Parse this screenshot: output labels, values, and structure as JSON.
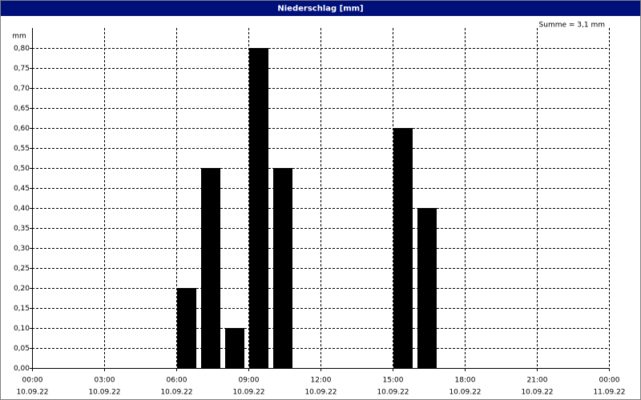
{
  "chart_data": {
    "type": "bar",
    "title": "Niederschlag [mm]",
    "y_label": "mm",
    "annotation": "Summe = 3,1 mm",
    "x": [
      6,
      7,
      8,
      9,
      10,
      15,
      16
    ],
    "values": [
      0.2,
      0.5,
      0.1,
      0.8,
      0.5,
      0.6,
      0.4
    ],
    "color": "#000000",
    "xlim": [
      0,
      24
    ],
    "xticks": [
      {
        "value": 0,
        "label": "00:00"
      },
      {
        "value": 3,
        "label": "03:00"
      },
      {
        "value": 6,
        "label": "06:00"
      },
      {
        "value": 9,
        "label": "09:00"
      },
      {
        "value": 12,
        "label": "12:00"
      },
      {
        "value": 15,
        "label": "15:00"
      },
      {
        "value": 18,
        "label": "18:00"
      },
      {
        "value": 21,
        "label": "21:00"
      },
      {
        "value": 24,
        "label": "00:00"
      }
    ],
    "xtick_dates": [
      "10.09.22",
      "10.09.22",
      "10.09.22",
      "10.09.22",
      "10.09.22",
      "10.09.22",
      "10.09.22",
      "10.09.22",
      "11.09.22"
    ],
    "ylim": [
      0,
      0.85
    ],
    "yticks": [
      {
        "value": 0,
        "label": "0,00"
      },
      {
        "value": 0.05,
        "label": "0,05"
      },
      {
        "value": 0.1,
        "label": "0,10"
      },
      {
        "value": 0.15,
        "label": "0,15"
      },
      {
        "value": 0.2,
        "label": "0,20"
      },
      {
        "value": 0.25,
        "label": "0,25"
      },
      {
        "value": 0.3,
        "label": "0,30"
      },
      {
        "value": 0.35,
        "label": "0,35"
      },
      {
        "value": 0.4,
        "label": "0,40"
      },
      {
        "value": 0.45,
        "label": "0,45"
      },
      {
        "value": 0.5,
        "label": "0,50"
      },
      {
        "value": 0.55,
        "label": "0,55"
      },
      {
        "value": 0.6,
        "label": "0,60"
      },
      {
        "value": 0.65,
        "label": "0,65"
      },
      {
        "value": 0.7,
        "label": "0,70"
      },
      {
        "value": 0.75,
        "label": "0,75"
      },
      {
        "value": 0.8,
        "label": "0,80"
      }
    ],
    "grid": true
  }
}
